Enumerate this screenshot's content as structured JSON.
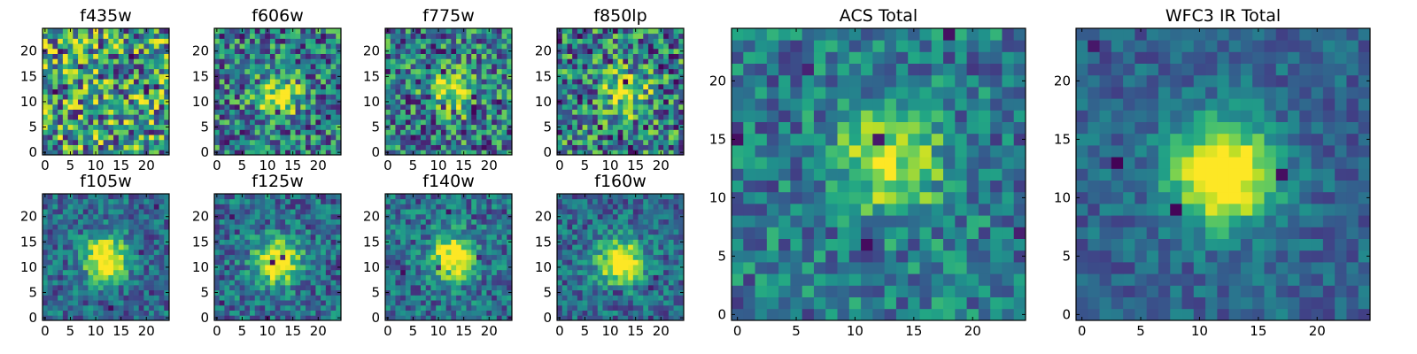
{
  "chart_data": [
    {
      "type": "heatmap",
      "title": "f435w",
      "xlim": [
        0,
        24
      ],
      "ylim": [
        0,
        24
      ],
      "xticks": [
        "0",
        "5",
        "10",
        "15",
        "20"
      ],
      "yticks": [
        "0",
        "5",
        "10",
        "15",
        "20"
      ],
      "colormap": "viridis",
      "source_center": null,
      "source_amplitude": 0.0,
      "noise": 0.95,
      "seed": 11
    },
    {
      "type": "heatmap",
      "title": "f606w",
      "xlim": [
        0,
        24
      ],
      "ylim": [
        0,
        24
      ],
      "xticks": [
        "0",
        "5",
        "10",
        "15",
        "20"
      ],
      "yticks": [
        "0",
        "5",
        "10",
        "15",
        "20"
      ],
      "colormap": "viridis",
      "source_center": [
        12,
        11
      ],
      "source_amplitude": 0.55,
      "noise": 0.75,
      "seed": 22
    },
    {
      "type": "heatmap",
      "title": "f775w",
      "xlim": [
        0,
        24
      ],
      "ylim": [
        0,
        24
      ],
      "xticks": [
        "0",
        "5",
        "10",
        "15",
        "20"
      ],
      "yticks": [
        "0",
        "5",
        "10",
        "15",
        "20"
      ],
      "colormap": "viridis",
      "source_center": [
        13,
        12
      ],
      "source_amplitude": 0.55,
      "noise": 0.8,
      "seed": 33
    },
    {
      "type": "heatmap",
      "title": "f850lp",
      "xlim": [
        0,
        24
      ],
      "ylim": [
        0,
        24
      ],
      "xticks": [
        "0",
        "5",
        "10",
        "15",
        "20"
      ],
      "yticks": [
        "0",
        "5",
        "10",
        "15",
        "20"
      ],
      "colormap": "viridis",
      "source_center": [
        13,
        12
      ],
      "source_amplitude": 0.5,
      "noise": 0.85,
      "seed": 44
    },
    {
      "type": "heatmap",
      "title": "f105w",
      "xlim": [
        0,
        24
      ],
      "ylim": [
        0,
        24
      ],
      "xticks": [
        "0",
        "5",
        "10",
        "15",
        "20"
      ],
      "yticks": [
        "0",
        "5",
        "10",
        "15",
        "20"
      ],
      "colormap": "viridis",
      "source_center": [
        12,
        12
      ],
      "source_amplitude": 0.8,
      "noise": 0.45,
      "seed": 55
    },
    {
      "type": "heatmap",
      "title": "f125w",
      "xlim": [
        0,
        24
      ],
      "ylim": [
        0,
        24
      ],
      "xticks": [
        "0",
        "5",
        "10",
        "15",
        "20"
      ],
      "yticks": [
        "0",
        "5",
        "10",
        "15",
        "20"
      ],
      "colormap": "viridis",
      "source_center": [
        12,
        11
      ],
      "source_amplitude": 0.75,
      "noise": 0.5,
      "seed": 66
    },
    {
      "type": "heatmap",
      "title": "f140w",
      "xlim": [
        0,
        24
      ],
      "ylim": [
        0,
        24
      ],
      "xticks": [
        "0",
        "5",
        "10",
        "15",
        "20"
      ],
      "yticks": [
        "0",
        "5",
        "10",
        "15",
        "20"
      ],
      "colormap": "viridis",
      "source_center": [
        13,
        12
      ],
      "source_amplitude": 0.75,
      "noise": 0.5,
      "seed": 77
    },
    {
      "type": "heatmap",
      "title": "f160w",
      "xlim": [
        0,
        24
      ],
      "ylim": [
        0,
        24
      ],
      "xticks": [
        "0",
        "5",
        "10",
        "15",
        "20"
      ],
      "yticks": [
        "0",
        "5",
        "10",
        "15",
        "20"
      ],
      "colormap": "viridis",
      "source_center": [
        12,
        11
      ],
      "source_amplitude": 0.8,
      "noise": 0.45,
      "seed": 88
    },
    {
      "type": "heatmap",
      "title": "ACS Total",
      "xlim": [
        0,
        24
      ],
      "ylim": [
        0,
        24
      ],
      "xticks": [
        "0",
        "5",
        "10",
        "15",
        "20"
      ],
      "yticks": [
        "0",
        "5",
        "10",
        "15",
        "20"
      ],
      "colormap": "viridis",
      "source_center": [
        13,
        13
      ],
      "source_amplitude": 0.55,
      "noise": 0.5,
      "seed": 99
    },
    {
      "type": "heatmap",
      "title": "WFC3 IR Total",
      "xlim": [
        0,
        24
      ],
      "ylim": [
        0,
        24
      ],
      "xticks": [
        "0",
        "5",
        "10",
        "15",
        "20"
      ],
      "yticks": [
        "0",
        "5",
        "10",
        "15",
        "20"
      ],
      "colormap": "viridis",
      "source_center": [
        12,
        12
      ],
      "source_amplitude": 0.9,
      "noise": 0.3,
      "seed": 111
    }
  ]
}
